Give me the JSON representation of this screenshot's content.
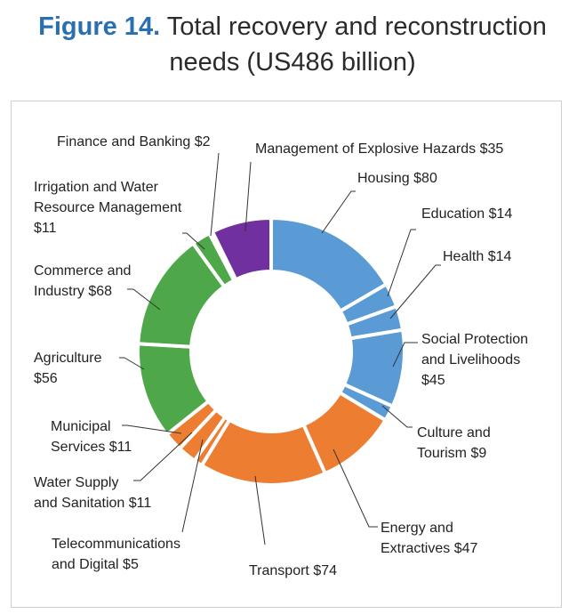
{
  "figure": {
    "number": "Figure 14.",
    "title_line1": "Total recovery and reconstruction",
    "title_line2": "needs (US486 billion)"
  },
  "chart_data": {
    "type": "pie",
    "donut": true,
    "total": 486,
    "slices": [
      {
        "label": [
          "Housing $80"
        ],
        "value": 80,
        "color": "#5b9bd5"
      },
      {
        "label": [
          "Education $14"
        ],
        "value": 14,
        "color": "#5b9bd5"
      },
      {
        "label": [
          "Health $14"
        ],
        "value": 14,
        "color": "#5b9bd5"
      },
      {
        "label": [
          "Social Protection",
          "and Livelihoods",
          "$45"
        ],
        "value": 45,
        "color": "#5b9bd5"
      },
      {
        "label": [
          "Culture and",
          "Tourism $9"
        ],
        "value": 9,
        "color": "#5b9bd5"
      },
      {
        "label": [
          "Energy and",
          "Extractives $47"
        ],
        "value": 47,
        "color": "#ed7d31"
      },
      {
        "label": [
          "Transport $74"
        ],
        "value": 74,
        "color": "#ed7d31"
      },
      {
        "label": [
          "Telecommunications",
          "and Digital $5"
        ],
        "value": 5,
        "color": "#ed7d31"
      },
      {
        "label": [
          "Water Supply",
          "and Sanitation $11"
        ],
        "value": 11,
        "color": "#ed7d31"
      },
      {
        "label": [
          "Municipal",
          "Services $11"
        ],
        "value": 11,
        "color": "#ed7d31"
      },
      {
        "label": [
          "Agriculture",
          "$56"
        ],
        "value": 56,
        "color": "#4ea84a"
      },
      {
        "label": [
          "Commerce and",
          "Industry $68"
        ],
        "value": 68,
        "color": "#4ea84a"
      },
      {
        "label": [
          "Irrigation and Water",
          "Resource Management",
          "$11"
        ],
        "value": 11,
        "color": "#4ea84a"
      },
      {
        "label": [
          "Finance and Banking $2"
        ],
        "value": 2,
        "color": "#4ea84a"
      },
      {
        "label": [
          "Management of Explosive Hazards $35"
        ],
        "value": 35,
        "color": "#7030a0"
      }
    ]
  }
}
